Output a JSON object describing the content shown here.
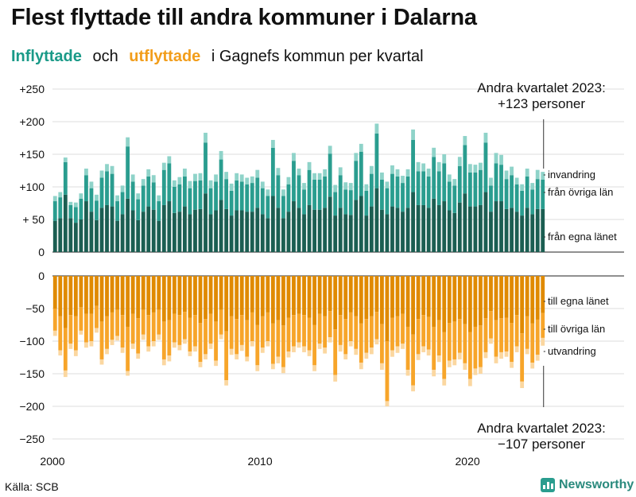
{
  "title": "Flest flyttade till andra kommuner i Dalarna",
  "subtitle": {
    "in": "Inflyttade",
    "and": "och",
    "out": "utflyttade",
    "rest": "i Gagnefs  kommun  per  kvartal"
  },
  "source": "Källa: SCB",
  "logo": "Newsworthy",
  "chart_data": {
    "type": "bar",
    "stacked": true,
    "x_start": "2000 Q1",
    "x_end": "2023 Q2",
    "xticks": [
      "2000",
      "2010",
      "2020"
    ],
    "yticks_top": [
      "+250",
      "+200",
      "+150",
      "+100",
      "+ 50",
      "0"
    ],
    "yticks_bottom": [
      "0",
      "−50",
      "−100",
      "−150",
      "−200",
      "−250"
    ],
    "ylim_top": [
      0,
      250
    ],
    "ylim_bottom": [
      -250,
      0
    ],
    "colors": {
      "in_own_county": "#1b5e52",
      "in_other_counties": "#2a9d8f",
      "in_immigration": "#8fd3c9",
      "out_own_county": "#e08a00",
      "out_other_counties": "#f7a52a",
      "out_emigration": "#fbd7a0"
    },
    "inflow_total": [
      86,
      92,
      145,
      77,
      76,
      90,
      128,
      108,
      88,
      125,
      135,
      132,
      87,
      102,
      176,
      119,
      90,
      112,
      127,
      118,
      87,
      137,
      147,
      110,
      115,
      128,
      109,
      120,
      121,
      183,
      110,
      119,
      155,
      123,
      105,
      121,
      119,
      114,
      116,
      126,
      108,
      96,
      172,
      129,
      96,
      115,
      152,
      128,
      106,
      138,
      121,
      121,
      127,
      163,
      103,
      130,
      107,
      106,
      152,
      166,
      104,
      132,
      197,
      122,
      108,
      133,
      127,
      117,
      127,
      188,
      138,
      136,
      128,
      160,
      138,
      150,
      119,
      112,
      146,
      178,
      135,
      134,
      137,
      183,
      114,
      152,
      149,
      125,
      131,
      114,
      104,
      128,
      106,
      126,
      123
    ],
    "inflow_own_county": [
      48,
      52,
      88,
      52,
      45,
      50,
      78,
      62,
      49,
      68,
      72,
      70,
      48,
      58,
      82,
      64,
      49,
      62,
      70,
      65,
      48,
      72,
      78,
      60,
      62,
      70,
      58,
      65,
      66,
      90,
      58,
      64,
      80,
      66,
      56,
      64,
      64,
      62,
      62,
      68,
      58,
      52,
      86,
      68,
      52,
      62,
      78,
      68,
      58,
      72,
      65,
      65,
      68,
      85,
      56,
      68,
      58,
      57,
      80,
      86,
      56,
      70,
      98,
      65,
      58,
      70,
      68,
      62,
      68,
      92,
      72,
      72,
      68,
      82,
      72,
      78,
      64,
      60,
      76,
      90,
      70,
      70,
      72,
      92,
      62,
      78,
      78,
      66,
      68,
      62,
      56,
      68,
      58,
      66,
      66
    ],
    "inflow_other_counties": [
      30,
      32,
      50,
      20,
      24,
      32,
      40,
      36,
      30,
      46,
      52,
      50,
      30,
      34,
      80,
      44,
      32,
      40,
      46,
      42,
      30,
      54,
      58,
      40,
      42,
      46,
      40,
      44,
      44,
      78,
      40,
      44,
      62,
      46,
      38,
      46,
      44,
      42,
      44,
      46,
      40,
      34,
      74,
      50,
      34,
      42,
      62,
      50,
      38,
      54,
      46,
      46,
      48,
      66,
      36,
      50,
      38,
      38,
      60,
      68,
      38,
      50,
      84,
      46,
      40,
      50,
      48,
      44,
      48,
      80,
      52,
      52,
      48,
      64,
      52,
      58,
      44,
      42,
      56,
      74,
      52,
      52,
      54,
      76,
      40,
      58,
      56,
      46,
      50,
      42,
      38,
      48,
      38,
      46,
      45
    ],
    "outflow_total": [
      92,
      122,
      155,
      112,
      123,
      90,
      110,
      108,
      87,
      136,
      120,
      106,
      99,
      118,
      153,
      112,
      127,
      98,
      116,
      108,
      98,
      137,
      131,
      110,
      114,
      104,
      123,
      116,
      140,
      128,
      112,
      138,
      97,
      168,
      121,
      128,
      115,
      131,
      108,
      146,
      118,
      108,
      143,
      134,
      149,
      125,
      117,
      110,
      117,
      123,
      146,
      112,
      119,
      102,
      162,
      116,
      128,
      108,
      121,
      143,
      127,
      120,
      105,
      144,
      200,
      124,
      118,
      112,
      153,
      177,
      129,
      117,
      122,
      154,
      132,
      168,
      140,
      137,
      128,
      144,
      169,
      152,
      150,
      126,
      104,
      134,
      127,
      124,
      141,
      117,
      172,
      120,
      142,
      130,
      107
    ],
    "outflow_own_county": [
      50,
      62,
      80,
      60,
      62,
      48,
      58,
      58,
      46,
      70,
      62,
      56,
      52,
      60,
      78,
      58,
      65,
      52,
      60,
      56,
      52,
      70,
      68,
      58,
      60,
      55,
      64,
      60,
      72,
      66,
      58,
      70,
      52,
      85,
      62,
      66,
      60,
      68,
      56,
      75,
      62,
      56,
      73,
      68,
      76,
      64,
      60,
      58,
      60,
      64,
      75,
      58,
      62,
      54,
      82,
      60,
      66,
      56,
      62,
      73,
      66,
      62,
      55,
      74,
      100,
      64,
      62,
      58,
      78,
      90,
      66,
      60,
      63,
      78,
      68,
      86,
      72,
      70,
      66,
      74,
      86,
      78,
      76,
      65,
      54,
      68,
      65,
      64,
      72,
      60,
      88,
      62,
      73,
      67,
      57
    ],
    "outflow_other_counties": [
      34,
      52,
      65,
      44,
      52,
      36,
      44,
      42,
      34,
      58,
      50,
      42,
      40,
      50,
      68,
      46,
      54,
      38,
      48,
      44,
      38,
      58,
      54,
      44,
      46,
      42,
      52,
      48,
      60,
      54,
      46,
      60,
      38,
      75,
      50,
      54,
      46,
      56,
      44,
      62,
      48,
      44,
      62,
      56,
      64,
      52,
      48,
      44,
      48,
      50,
      62,
      46,
      48,
      40,
      70,
      46,
      54,
      44,
      50,
      60,
      52,
      48,
      42,
      60,
      92,
      50,
      46,
      46,
      66,
      78,
      54,
      48,
      50,
      66,
      54,
      72,
      58,
      58,
      52,
      60,
      72,
      64,
      64,
      52,
      42,
      56,
      52,
      52,
      60,
      48,
      74,
      50,
      60,
      54,
      38
    ],
    "annotations": {
      "top": [
        "Andra kvartalet 2023:",
        "+123 personer"
      ],
      "bottom": [
        "Andra kvartalet 2023:",
        "−107 personer"
      ],
      "in_labels": [
        "invandring",
        "från övriga län",
        "från egna länet"
      ],
      "out_labels": [
        "till egna länet",
        "till övriga län",
        "utvandring"
      ]
    }
  }
}
